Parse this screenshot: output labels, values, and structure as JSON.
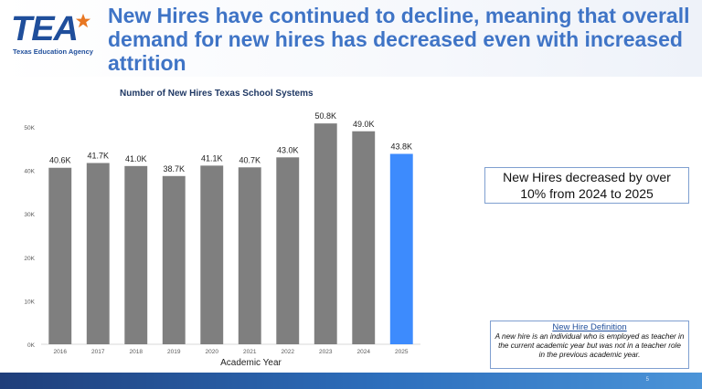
{
  "logo": {
    "letters": "TEA",
    "subtitle": "Texas Education Agency"
  },
  "slide": {
    "title": "New Hires have continued to decline, meaning that overall demand for new hires has decreased even with increased attrition",
    "callout": "New Hires decreased by over 10% from 2024 to 2025",
    "definition_title": "New Hire Definition",
    "definition_text": "A new hire is an individual who is employed as teacher in the current academic year but was not in a teacher role in the previous academic year.",
    "page_number": "5"
  },
  "colors": {
    "bar_default": "#7f7f7f",
    "bar_highlight": "#3d8bfd",
    "title": "#3f74c6"
  },
  "chart_data": {
    "type": "bar",
    "title": "Number of New Hires Texas School Systems",
    "xlabel": "Academic Year",
    "ylabel": "",
    "ylim": [
      0,
      50000
    ],
    "yticks": [
      0,
      10000,
      20000,
      30000,
      40000,
      50000
    ],
    "ytick_labels": [
      "0K",
      "10K",
      "20K",
      "30K",
      "40K",
      "50K"
    ],
    "categories": [
      "2016",
      "2017",
      "2018",
      "2019",
      "2020",
      "2021",
      "2022",
      "2023",
      "2024",
      "2025"
    ],
    "values": [
      40600,
      41700,
      41000,
      38700,
      41100,
      40700,
      43000,
      50800,
      49000,
      43800
    ],
    "data_labels": [
      "40.6K",
      "41.7K",
      "41.0K",
      "38.7K",
      "41.1K",
      "40.7K",
      "43.0K",
      "50.8K",
      "49.0K",
      "43.8K"
    ],
    "highlight_category": "2025"
  }
}
